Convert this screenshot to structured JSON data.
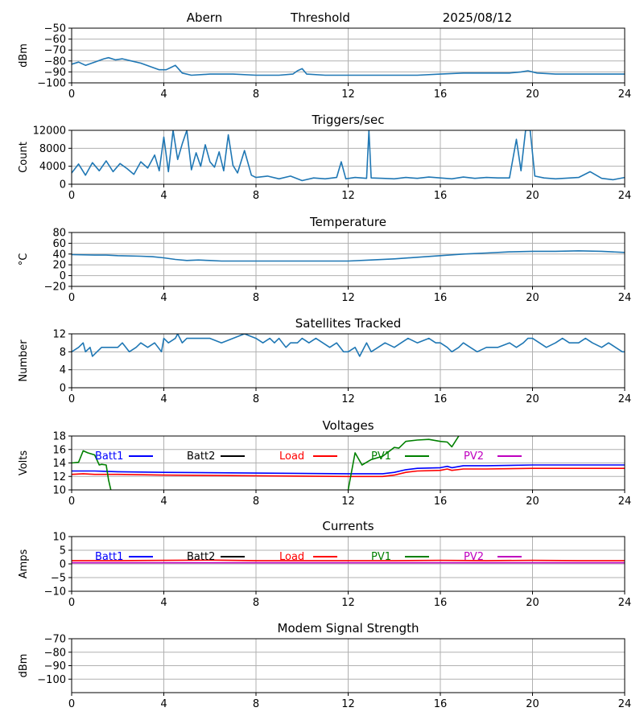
{
  "header": {
    "station": "Abern",
    "label": "Threshold",
    "date": "2025/08/12"
  },
  "colors": {
    "series_default": "#1f77b4",
    "batt1": "#0000ff",
    "batt2": "#000000",
    "load": "#ff0000",
    "pv1": "#008000",
    "pv2": "#bf00bf",
    "grid": "#b0b0b0"
  },
  "chart_data": [
    {
      "type": "line",
      "title": "",
      "ylabel": "dBm",
      "xlim": [
        0,
        24
      ],
      "ylim": [
        -100,
        -50
      ],
      "xticks": [
        0,
        4,
        8,
        12,
        16,
        20,
        24
      ],
      "yticks": [
        -100,
        -90,
        -80,
        -70,
        -60,
        -50
      ],
      "grid": true,
      "series": [
        {
          "color": "#1f77b4",
          "x": [
            0,
            0.3,
            0.6,
            1.0,
            1.4,
            1.6,
            1.9,
            2.2,
            2.6,
            3.0,
            3.4,
            3.8,
            4.1,
            4.3,
            4.5,
            4.8,
            5.2,
            6.0,
            7.0,
            8.0,
            9.0,
            9.6,
            9.8,
            10.0,
            10.2,
            11.0,
            12.0,
            13.0,
            14.0,
            15.0,
            16.0,
            17.0,
            18.0,
            19.0,
            19.5,
            19.8,
            20.2,
            21.0,
            22.0,
            23.0,
            24.0
          ],
          "y": [
            -83,
            -81,
            -84,
            -81,
            -78,
            -77,
            -79,
            -78,
            -80,
            -82,
            -85,
            -88,
            -88,
            -86,
            -84,
            -91,
            -93,
            -92,
            -92,
            -93,
            -93,
            -92,
            -89,
            -87,
            -92,
            -93,
            -93,
            -93,
            -93,
            -93,
            -92,
            -91,
            -91,
            -91,
            -90,
            -89,
            -91,
            -92,
            -92,
            -92,
            -92
          ]
        }
      ]
    },
    {
      "type": "line",
      "title": "Triggers/sec",
      "ylabel": "Count",
      "xlim": [
        0,
        24
      ],
      "ylim": [
        0,
        12000
      ],
      "xticks": [
        0,
        4,
        8,
        12,
        16,
        20,
        24
      ],
      "yticks": [
        0,
        4000,
        8000,
        12000
      ],
      "grid": true,
      "series": [
        {
          "color": "#1f77b4",
          "x": [
            0,
            0.3,
            0.6,
            0.9,
            1.2,
            1.5,
            1.8,
            2.1,
            2.4,
            2.7,
            3.0,
            3.3,
            3.6,
            3.8,
            4.0,
            4.2,
            4.4,
            4.6,
            4.8,
            5.0,
            5.2,
            5.4,
            5.6,
            5.8,
            6.0,
            6.2,
            6.4,
            6.6,
            6.8,
            7.0,
            7.2,
            7.5,
            7.8,
            8.0,
            8.5,
            9.0,
            9.5,
            10.0,
            10.5,
            11.0,
            11.5,
            11.7,
            11.9,
            12.3,
            12.8,
            12.9,
            13.0,
            13.5,
            14.0,
            14.5,
            15.0,
            15.5,
            16.0,
            16.5,
            17.0,
            17.5,
            18.0,
            18.5,
            19.0,
            19.3,
            19.5,
            19.7,
            19.9,
            20.1,
            20.5,
            21.0,
            22.0,
            22.5,
            23.0,
            23.5,
            24.0
          ],
          "y": [
            2500,
            4500,
            2000,
            4800,
            3000,
            5200,
            2800,
            4600,
            3500,
            2200,
            5000,
            3600,
            6500,
            3000,
            10500,
            2800,
            12000,
            5500,
            9000,
            12000,
            3200,
            7000,
            4000,
            8800,
            5000,
            3800,
            7200,
            3000,
            11000,
            4200,
            2500,
            7500,
            2000,
            1500,
            1800,
            1200,
            1800,
            800,
            1400,
            1200,
            1500,
            5000,
            1200,
            1500,
            1300,
            12000,
            1400,
            1300,
            1200,
            1500,
            1300,
            1600,
            1400,
            1200,
            1600,
            1300,
            1500,
            1400,
            1400,
            10000,
            3000,
            12000,
            12000,
            1800,
            1400,
            1200,
            1500,
            2800,
            1300,
            1000,
            1500
          ]
        }
      ]
    },
    {
      "type": "line",
      "title": "Temperature",
      "ylabel": "°C",
      "xlim": [
        0,
        24
      ],
      "ylim": [
        -20,
        80
      ],
      "xticks": [
        0,
        4,
        8,
        12,
        16,
        20,
        24
      ],
      "yticks": [
        -20,
        0,
        20,
        40,
        60,
        80
      ],
      "grid": true,
      "series": [
        {
          "color": "#1f77b4",
          "x": [
            0,
            1,
            1.5,
            2,
            3,
            3.5,
            4,
            4.5,
            5,
            5.5,
            6,
            6.5,
            8,
            10,
            12,
            13,
            14,
            15,
            16,
            17,
            18,
            19,
            20,
            21,
            22,
            23,
            24
          ],
          "y": [
            39,
            38,
            38,
            37,
            36,
            35,
            33,
            30,
            28,
            29,
            28,
            27,
            27,
            27,
            27,
            29,
            31,
            34,
            37,
            40,
            42,
            44,
            45,
            45,
            46,
            45,
            43
          ]
        }
      ]
    },
    {
      "type": "line",
      "title": "Satellites Tracked",
      "ylabel": "Number",
      "xlim": [
        0,
        24
      ],
      "ylim": [
        0,
        12
      ],
      "xticks": [
        0,
        4,
        8,
        12,
        16,
        20,
        24
      ],
      "yticks": [
        0,
        4,
        8,
        12
      ],
      "grid": true,
      "series": [
        {
          "color": "#1f77b4",
          "x": [
            0,
            0.3,
            0.5,
            0.6,
            0.8,
            0.9,
            1.1,
            1.3,
            2.0,
            2.2,
            2.5,
            2.8,
            3.0,
            3.3,
            3.6,
            3.9,
            4.0,
            4.2,
            4.5,
            4.6,
            4.8,
            5.0,
            5.5,
            6.0,
            6.5,
            7.0,
            7.5,
            8.0,
            8.3,
            8.6,
            8.8,
            9.0,
            9.3,
            9.5,
            9.8,
            10.0,
            10.3,
            10.6,
            10.9,
            11.2,
            11.5,
            11.8,
            12.0,
            12.3,
            12.5,
            12.7,
            12.8,
            13.0,
            13.3,
            13.6,
            14.0,
            14.3,
            14.6,
            15.0,
            15.5,
            15.8,
            16.0,
            16.3,
            16.5,
            16.8,
            17.0,
            17.3,
            17.6,
            18.0,
            18.5,
            19.0,
            19.3,
            19.6,
            19.8,
            20.0,
            20.3,
            20.6,
            21.0,
            21.3,
            21.6,
            22.0,
            22.3,
            22.6,
            23.0,
            23.3,
            23.6,
            23.9,
            24.0
          ],
          "y": [
            8,
            9,
            10,
            8,
            9,
            7,
            8,
            9,
            9,
            10,
            8,
            9,
            10,
            9,
            10,
            8,
            11,
            10,
            11,
            12,
            10,
            11,
            11,
            11,
            10,
            11,
            12,
            11,
            10,
            11,
            10,
            11,
            9,
            10,
            10,
            11,
            10,
            11,
            10,
            9,
            10,
            8,
            8,
            9,
            7,
            9,
            10,
            8,
            9,
            10,
            9,
            10,
            11,
            10,
            11,
            10,
            10,
            9,
            8,
            9,
            10,
            9,
            8,
            9,
            9,
            10,
            9,
            10,
            11,
            11,
            10,
            9,
            10,
            11,
            10,
            10,
            11,
            10,
            9,
            10,
            9,
            8,
            8
          ]
        }
      ]
    },
    {
      "type": "line",
      "title": "Voltages",
      "ylabel": "Volts",
      "xlim": [
        0,
        24
      ],
      "ylim": [
        10,
        18
      ],
      "xticks": [
        0,
        4,
        8,
        12,
        16,
        20,
        24
      ],
      "yticks": [
        10,
        12,
        14,
        16,
        18
      ],
      "grid": true,
      "legend": [
        "Batt1",
        "Batt2",
        "Load",
        "PV1",
        "PV2"
      ],
      "series": [
        {
          "name": "Batt1",
          "color": "#0000ff",
          "x": [
            0,
            0.5,
            1,
            2,
            4,
            8,
            12,
            13.5,
            14,
            14.5,
            15,
            16,
            16.3,
            16.5,
            17,
            18,
            20,
            22,
            24
          ],
          "y": [
            12.8,
            12.8,
            12.8,
            12.7,
            12.6,
            12.5,
            12.4,
            12.4,
            12.6,
            13.0,
            13.2,
            13.3,
            13.5,
            13.3,
            13.6,
            13.6,
            13.7,
            13.7,
            13.7
          ]
        },
        {
          "name": "Load",
          "color": "#ff0000",
          "x": [
            0,
            0.5,
            1,
            2,
            4,
            8,
            12,
            13.5,
            14,
            14.5,
            15,
            16,
            16.3,
            16.5,
            17,
            18,
            20,
            22,
            24
          ],
          "y": [
            12.3,
            12.4,
            12.3,
            12.3,
            12.2,
            12.1,
            12.0,
            12.0,
            12.2,
            12.6,
            12.8,
            12.9,
            13.1,
            12.9,
            13.1,
            13.1,
            13.2,
            13.2,
            13.2
          ]
        },
        {
          "name": "PV1",
          "color": "#008000",
          "x": [
            0,
            0.3,
            0.5,
            0.7,
            1.0,
            1.2,
            1.3,
            1.5,
            1.6,
            1.7
          ],
          "y": [
            14.0,
            14.1,
            15.8,
            15.5,
            15.2,
            13.7,
            13.8,
            13.7,
            11.5,
            10.0
          ]
        },
        {
          "name": "PV1",
          "color": "#008000",
          "x": [
            12.0,
            12.3,
            12.6,
            13.0,
            13.5,
            14.0,
            14.2,
            14.5,
            15.0,
            15.5,
            16.0,
            16.3,
            16.5,
            16.8
          ],
          "y": [
            10.0,
            15.5,
            13.7,
            14.5,
            15.0,
            16.3,
            16.2,
            17.2,
            17.4,
            17.5,
            17.2,
            17.1,
            16.4,
            18.0
          ]
        }
      ]
    },
    {
      "type": "line",
      "title": "Currents",
      "ylabel": "Amps",
      "xlim": [
        0,
        24
      ],
      "ylim": [
        -10,
        10
      ],
      "xticks": [
        0,
        4,
        8,
        12,
        16,
        20,
        24
      ],
      "yticks": [
        -10,
        -5,
        0,
        5,
        10
      ],
      "grid": true,
      "legend": [
        "Batt1",
        "Batt2",
        "Load",
        "PV1",
        "PV2"
      ],
      "series": [
        {
          "name": "Load",
          "color": "#ff0000",
          "x": [
            0,
            2,
            4,
            6,
            8,
            10,
            12,
            14,
            16,
            18,
            20,
            22,
            24
          ],
          "y": [
            1.2,
            1.2,
            1.3,
            1.4,
            1.2,
            1.2,
            1.2,
            1.2,
            1.3,
            1.2,
            1.3,
            1.2,
            1.2
          ]
        },
        {
          "name": "PV2",
          "color": "#bf00bf",
          "x": [
            0,
            24
          ],
          "y": [
            0.4,
            0.4
          ]
        }
      ]
    },
    {
      "type": "line",
      "title": "Modem Signal Strength",
      "ylabel": "dBm",
      "xlim": [
        0,
        24
      ],
      "ylim": [
        -110,
        -70
      ],
      "xticks": [
        0,
        4,
        8,
        12,
        16,
        20,
        24
      ],
      "yticks": [
        -100,
        -90,
        -80,
        -70
      ],
      "grid": true,
      "series": []
    }
  ]
}
